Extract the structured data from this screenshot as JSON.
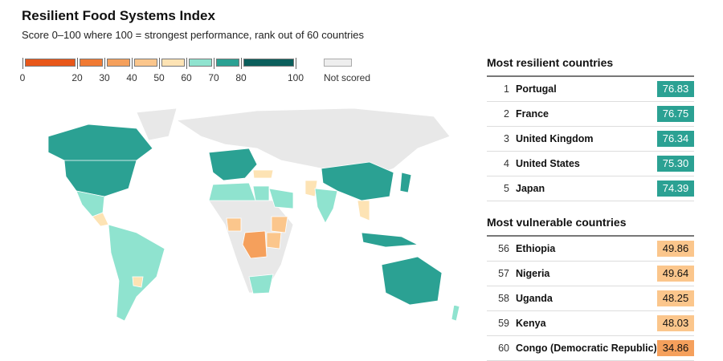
{
  "title": "Resilient Food Systems Index",
  "subtitle": "Score 0–100 where 100 = strongest performance, rank out of 60 countries",
  "legend": {
    "bins": [
      {
        "from": 0,
        "to": 20,
        "color": "#e8571a"
      },
      {
        "from": 20,
        "to": 30,
        "color": "#f07a33"
      },
      {
        "from": 30,
        "to": 40,
        "color": "#f5a05c"
      },
      {
        "from": 40,
        "to": 50,
        "color": "#fbc68c"
      },
      {
        "from": 50,
        "to": 60,
        "color": "#fde3b4"
      },
      {
        "from": 60,
        "to": 70,
        "color": "#8fe3cf"
      },
      {
        "from": 70,
        "to": 80,
        "color": "#2ba193"
      },
      {
        "from": 80,
        "to": 100,
        "color": "#0b5f5c"
      }
    ],
    "ticks": [
      "0",
      "20",
      "30",
      "40",
      "50",
      "60",
      "70",
      "80",
      "100"
    ],
    "not_scored": "Not scored",
    "not_scored_color": "#eeeeee"
  },
  "resilient": {
    "heading": "Most resilient countries",
    "rows": [
      {
        "rank": "1",
        "name": "Portugal",
        "score": "76.83"
      },
      {
        "rank": "2",
        "name": "France",
        "score": "76.75"
      },
      {
        "rank": "3",
        "name": "United Kingdom",
        "score": "76.34"
      },
      {
        "rank": "4",
        "name": "United States",
        "score": "75.30"
      },
      {
        "rank": "5",
        "name": "Japan",
        "score": "74.39"
      }
    ]
  },
  "vulnerable": {
    "heading": "Most vulnerable countries",
    "rows": [
      {
        "rank": "56",
        "name": "Ethiopia",
        "score": "49.86"
      },
      {
        "rank": "57",
        "name": "Nigeria",
        "score": "49.64"
      },
      {
        "rank": "58",
        "name": "Uganda",
        "score": "48.25"
      },
      {
        "rank": "59",
        "name": "Kenya",
        "score": "48.03"
      },
      {
        "rank": "60",
        "name": "Congo (Democratic Republic)",
        "score": "34.86"
      }
    ]
  }
}
